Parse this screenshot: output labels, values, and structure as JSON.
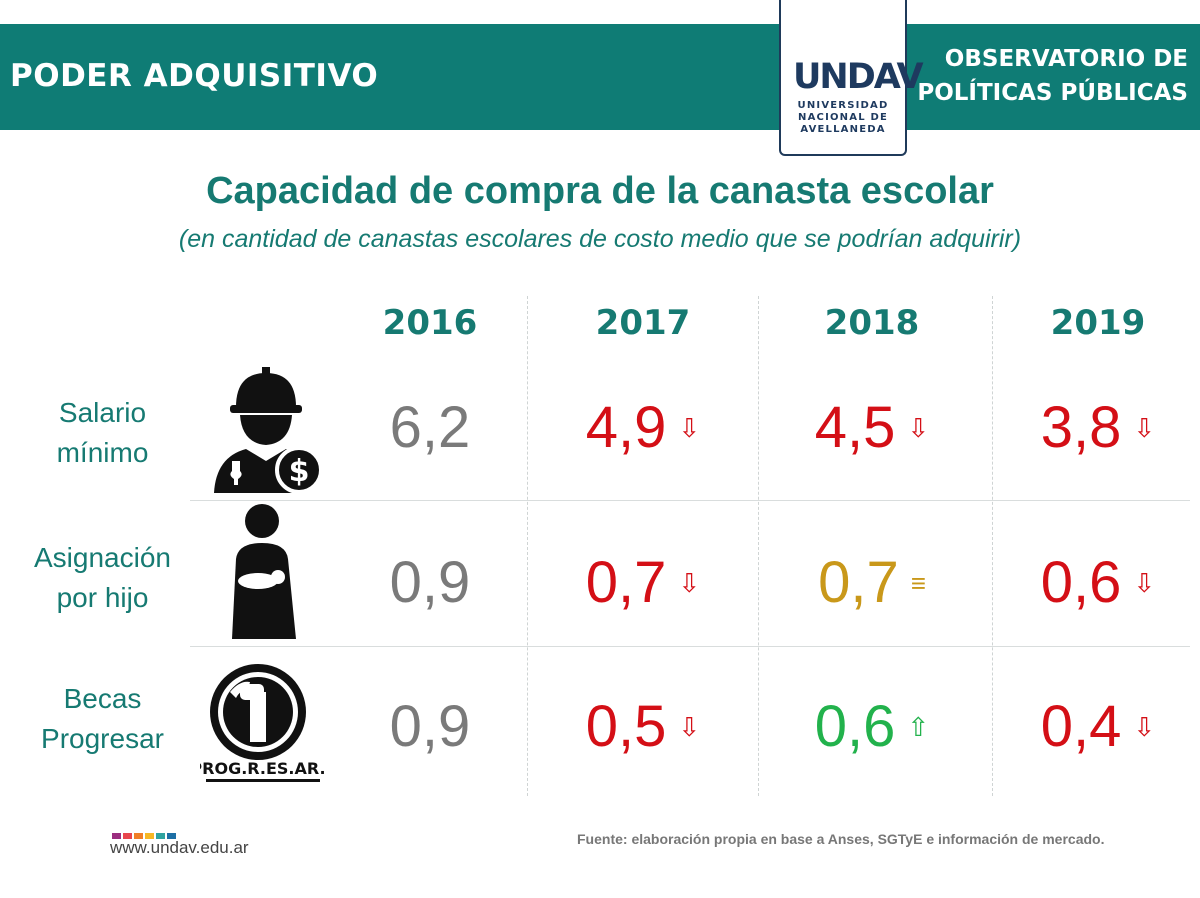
{
  "header": {
    "title": "PODER ADQUISITIVO",
    "observatory_line1": "OBSERVATORIO DE",
    "observatory_line2": "POLÍTICAS PÚBLICAS",
    "logo_mark": "UNDAV",
    "logo_line1": "UNIVERSIDAD",
    "logo_line2": "NACIONAL DE",
    "logo_line3": "AVELLANEDA"
  },
  "main": {
    "title": "Capacidad de compra de la canasta escolar",
    "subtitle": "(en cantidad de canastas escolares de costo medio que se podrían adquirir)"
  },
  "table": {
    "years": [
      "2016",
      "2017",
      "2018",
      "2019"
    ],
    "rows": [
      {
        "label_line1": "Salario",
        "label_line2": "mínimo",
        "icon": "worker-icon",
        "cells": [
          {
            "value": "6,2",
            "trend": "none",
            "color": "#7a7a7a"
          },
          {
            "value": "4,9",
            "trend": "down",
            "color": "#d40f16"
          },
          {
            "value": "4,5",
            "trend": "down",
            "color": "#d40f16"
          },
          {
            "value": "3,8",
            "trend": "down",
            "color": "#d40f16"
          }
        ]
      },
      {
        "label_line1": "Asignación",
        "label_line2": "por hijo",
        "icon": "mother-child-icon",
        "cells": [
          {
            "value": "0,9",
            "trend": "none",
            "color": "#7a7a7a"
          },
          {
            "value": "0,7",
            "trend": "down",
            "color": "#d40f16"
          },
          {
            "value": "0,7",
            "trend": "equal",
            "color": "#c9981a"
          },
          {
            "value": "0,6",
            "trend": "down",
            "color": "#d40f16"
          }
        ]
      },
      {
        "label_line1": "Becas",
        "label_line2": "Progresar",
        "icon": "progresar-logo-icon",
        "logo_text": "PROG.R.ES.AR.",
        "cells": [
          {
            "value": "0,9",
            "trend": "none",
            "color": "#7a7a7a"
          },
          {
            "value": "0,5",
            "trend": "down",
            "color": "#d40f16"
          },
          {
            "value": "0,6",
            "trend": "up",
            "color": "#22b24c"
          },
          {
            "value": "0,4",
            "trend": "down",
            "color": "#d40f16"
          }
        ]
      }
    ]
  },
  "footer": {
    "url": "www.undav.edu.ar",
    "source": "Fuente: elaboración propia en base a Anses, SGTyE e información de mercado.",
    "dot_colors": [
      "#9b2d7f",
      "#e8454d",
      "#f07e26",
      "#f6b724",
      "#2fa3a0",
      "#1d6fa5"
    ]
  },
  "colors": {
    "brand": "#0f7c75",
    "down": "#d40f16",
    "equal": "#c9981a",
    "up": "#22b24c",
    "neutral": "#7a7a7a"
  }
}
